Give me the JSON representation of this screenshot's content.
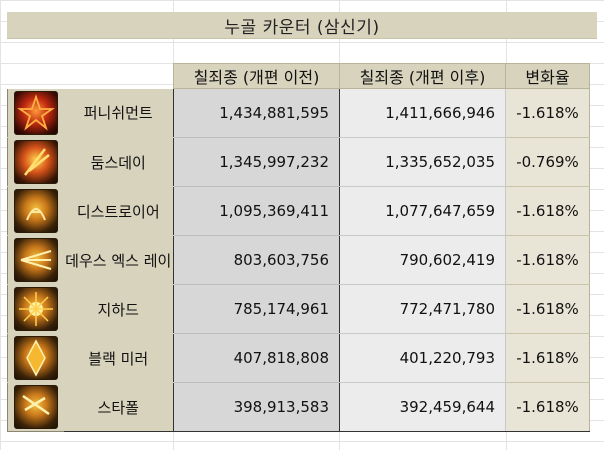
{
  "title": "누골 카운터 (삼신기)",
  "headers": {
    "before": "칠죄종 (개편 이전)",
    "after": "칠죄종 (개편 이후)",
    "change": "변화율"
  },
  "rows": [
    {
      "name": "퍼니쉬먼트",
      "before": "1,434,881,595",
      "after": "1,411,666,946",
      "change": "-1.618%",
      "icon": "punishment-skill-icon"
    },
    {
      "name": "둠스데이",
      "before": "1,345,997,232",
      "after": "1,335,652,035",
      "change": "-0.769%",
      "icon": "doomsday-skill-icon"
    },
    {
      "name": "디스트로이어",
      "before": "1,095,369,411",
      "after": "1,077,647,659",
      "change": "-1.618%",
      "icon": "destroyer-skill-icon"
    },
    {
      "name": "데우스 엑스 레이",
      "before": "803,603,756",
      "after": "790,602,419",
      "change": "-1.618%",
      "icon": "deus-ex-ray-skill-icon"
    },
    {
      "name": "지하드",
      "before": "785,174,961",
      "after": "772,471,780",
      "change": "-1.618%",
      "icon": "jihad-skill-icon"
    },
    {
      "name": "블랙 미러",
      "before": "407,818,808",
      "after": "401,220,793",
      "change": "-1.618%",
      "icon": "black-mirror-skill-icon"
    },
    {
      "name": "스타폴",
      "before": "398,913,583",
      "after": "392,459,644",
      "change": "-1.618%",
      "icon": "starfall-skill-icon"
    }
  ]
}
